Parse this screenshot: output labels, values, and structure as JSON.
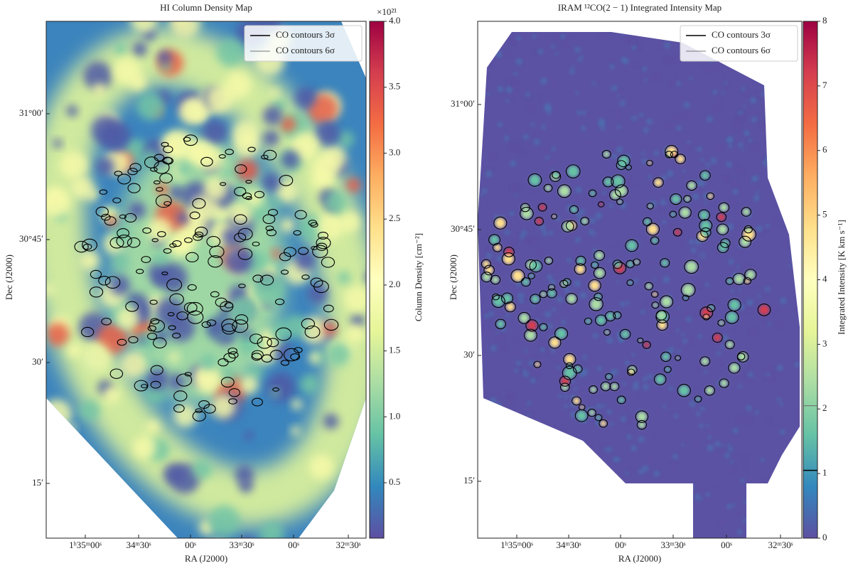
{
  "chart_data": [
    {
      "type": "image",
      "title": "HI Column Density Map",
      "xlabel": "RA (J2000)",
      "ylabel": "Dec (J2000)",
      "xtick_labels": [
        "1ʰ35ᵐ00ˢ",
        "34ᵐ30ˢ",
        "00ˢ",
        "33ᵐ30ˢ",
        "00ˢ",
        "32ᵐ30ˢ"
      ],
      "ytick_labels": [
        "31°00′",
        "30°45′",
        "30′",
        "15′"
      ],
      "colormap": "Spectral_r",
      "colorbar_label": "Column Density [cm⁻²]",
      "colorbar_multiplier": "×10²¹",
      "clim": [
        0.08,
        4.0
      ],
      "cticks": [
        {
          "value": 0.5,
          "label": "0.5"
        },
        {
          "value": 1,
          "label": "1.0"
        },
        {
          "value": 1.5,
          "label": "1.5"
        },
        {
          "value": 2,
          "label": "2.0"
        },
        {
          "value": 2.5,
          "label": "2.5"
        },
        {
          "value": 3,
          "label": "3.0"
        },
        {
          "value": 3.5,
          "label": "3.5"
        },
        {
          "value": 4,
          "label": "4.0"
        }
      ],
      "legend": [
        "CO contours 3σ",
        "CO contours 6σ"
      ],
      "legend_loc": "upper right"
    },
    {
      "type": "image",
      "title": "IRAM ¹²CO(2 − 1) Integrated Intensity Map",
      "xlabel": "RA (J2000)",
      "ylabel": "Dec (J2000)",
      "xtick_labels": [
        "1ʰ35ᵐ00ˢ",
        "34ᵐ30ˢ",
        "00ˢ",
        "33ᵐ30ˢ",
        "00ˢ",
        "32ᵐ30ˢ"
      ],
      "ytick_labels": [
        "31°00′",
        "30°45′",
        "30′",
        "15′"
      ],
      "colormap": "Spectral_r",
      "colorbar_label": "Integrated Intensity [K km s⁻¹]",
      "clim": [
        0,
        8
      ],
      "cticks": [
        0,
        1,
        2,
        3,
        4,
        5,
        6,
        7,
        8
      ],
      "contour_levels": [
        1.05,
        2.05
      ],
      "legend": [
        "CO contours 3σ",
        "CO contours 6σ"
      ],
      "legend_loc": "upper right"
    }
  ]
}
